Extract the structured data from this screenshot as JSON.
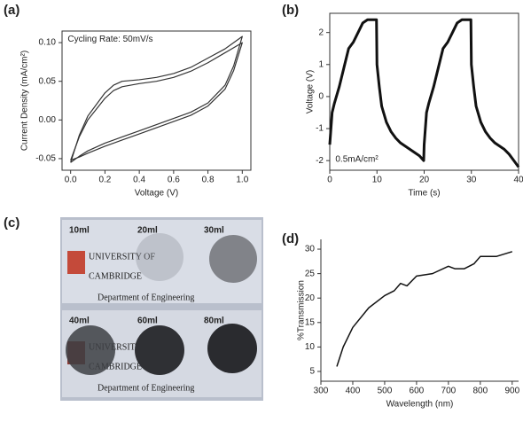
{
  "chart_data": [
    {
      "type": "line",
      "panel": "(a)",
      "xlabel": "Voltage (V)",
      "ylabel": "Current Density (mA/cm²)",
      "annotation": "Cycling Rate: 50mV/s",
      "x": [
        0,
        0.05,
        0.1,
        0.2,
        0.25,
        0.3,
        0.4,
        0.5,
        0.6,
        0.7,
        0.8,
        0.9,
        1.0,
        0.95,
        0.9,
        0.8,
        0.7,
        0.6,
        0.5,
        0.4,
        0.3,
        0.2,
        0.1,
        0.05,
        0
      ],
      "series": [
        {
          "color": "#333333",
          "values": [
            -0.055,
            -0.02,
            0.005,
            0.035,
            0.045,
            0.05,
            0.052,
            0.055,
            0.06,
            0.068,
            0.08,
            0.092,
            0.108,
            0.07,
            0.045,
            0.022,
            0.01,
            0.002,
            -0.006,
            -0.014,
            -0.022,
            -0.03,
            -0.04,
            -0.047,
            -0.055
          ]
        },
        {
          "color": "#333333",
          "values": [
            -0.052,
            -0.022,
            0.0,
            0.028,
            0.038,
            0.043,
            0.047,
            0.05,
            0.055,
            0.063,
            0.074,
            0.087,
            0.1,
            0.064,
            0.04,
            0.018,
            0.006,
            -0.002,
            -0.01,
            -0.018,
            -0.026,
            -0.034,
            -0.043,
            -0.048,
            -0.052
          ]
        }
      ],
      "xlim": [
        -0.05,
        1.05
      ],
      "ylim": [
        -0.065,
        0.115
      ],
      "xticks": [
        {
          "value": 0,
          "label": "0.0"
        },
        {
          "value": 0.2,
          "label": "0.2"
        },
        {
          "value": 0.4,
          "label": "0.4"
        },
        {
          "value": 0.6,
          "label": "0.6"
        },
        {
          "value": 0.8,
          "label": "0.8"
        },
        {
          "value": 1,
          "label": "1.0"
        }
      ],
      "yticks": [
        {
          "value": -0.05,
          "label": "-0.05"
        },
        {
          "value": 0,
          "label": "0.00"
        },
        {
          "value": 0.05,
          "label": "0.05"
        },
        {
          "value": 0.1,
          "label": "0.10"
        }
      ]
    },
    {
      "type": "line",
      "panel": "(b)",
      "xlabel": "Time (s)",
      "ylabel": "Voltage (V)",
      "annotation": "0.5mA/cm²",
      "x": [
        0,
        0.5,
        1,
        2,
        3,
        4,
        5,
        6,
        7,
        8,
        9,
        9.9,
        10,
        10.5,
        11,
        12,
        13,
        14,
        15,
        16,
        17,
        18,
        19,
        19.9,
        20,
        20.5,
        21,
        22,
        23,
        24,
        25,
        26,
        27,
        28,
        29,
        29.9,
        30,
        30.5,
        31,
        32,
        33,
        34,
        35,
        36,
        37,
        38,
        39,
        40
      ],
      "series": [
        {
          "color": "#111111",
          "values": [
            -1.5,
            -0.5,
            -0.2,
            0.3,
            0.9,
            1.5,
            1.7,
            2.0,
            2.3,
            2.4,
            2.4,
            2.4,
            1.0,
            0.3,
            -0.3,
            -0.8,
            -1.1,
            -1.3,
            -1.45,
            -1.55,
            -1.65,
            -1.75,
            -1.85,
            -2.0,
            -1.5,
            -0.5,
            -0.2,
            0.3,
            0.9,
            1.5,
            1.7,
            2.0,
            2.3,
            2.4,
            2.4,
            2.4,
            1.0,
            0.3,
            -0.3,
            -0.8,
            -1.1,
            -1.3,
            -1.45,
            -1.55,
            -1.65,
            -1.8,
            -2.0,
            -2.2
          ]
        }
      ],
      "xlim": [
        0,
        40
      ],
      "ylim": [
        -2.3,
        2.6
      ],
      "xticks": [
        0,
        10,
        20,
        30,
        40
      ],
      "yticks": [
        -2,
        -1,
        0,
        1,
        2
      ]
    },
    {
      "type": "line",
      "panel": "(d)",
      "xlabel": "Wavelength (nm)",
      "ylabel": "%Transmission",
      "x": [
        350,
        370,
        400,
        450,
        500,
        530,
        550,
        570,
        600,
        650,
        700,
        720,
        750,
        780,
        800,
        830,
        850,
        900
      ],
      "series": [
        {
          "color": "#111111",
          "values": [
            6,
            10,
            14,
            18,
            20.5,
            21.5,
            23,
            22.5,
            24.5,
            25,
            26.5,
            26,
            26,
            27,
            28.5,
            28.5,
            28.5,
            29.5
          ]
        }
      ],
      "xlim": [
        300,
        920
      ],
      "ylim": [
        3,
        32
      ],
      "xticks": [
        300,
        400,
        500,
        600,
        700,
        800,
        900
      ],
      "yticks": [
        5,
        10,
        15,
        20,
        25,
        30
      ]
    }
  ],
  "photo": {
    "panel": "(c)",
    "samples": [
      "10ml",
      "20ml",
      "30ml",
      "40ml",
      "60ml",
      "80ml"
    ],
    "rows": [
      {
        "university": "UNIVERSITY OF",
        "name": "CAMBRIDGE",
        "department": "Department of Engineering"
      },
      {
        "university": "UNIVERSITY OF",
        "name": "CAMBRIDGE",
        "department": "Department of Engineering"
      }
    ]
  }
}
